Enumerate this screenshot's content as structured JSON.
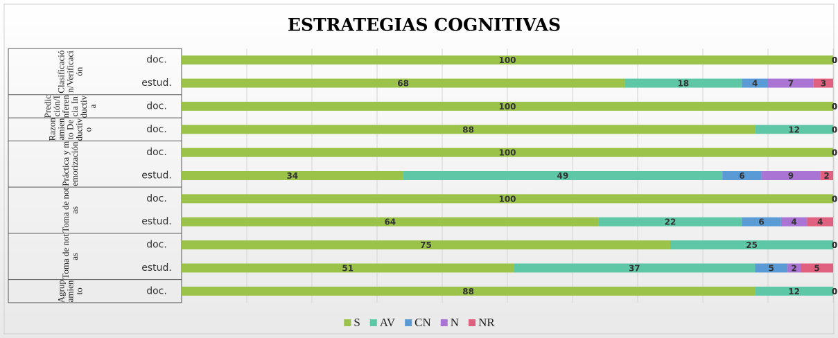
{
  "chart_data": {
    "type": "bar",
    "orientation": "horizontal",
    "stacked": true,
    "title": "ESTRATEGIAS COGNITIVAS",
    "groups": [
      {
        "label": "Clasificación/Verificación",
        "span": 2
      },
      {
        "label": "Predicción/Inferencia Inductiva",
        "span": 1
      },
      {
        "label": "Razonamiento Deductivo",
        "span": 1
      },
      {
        "label": "Práctica y memorización",
        "span": 2
      },
      {
        "label": "Toma de notas",
        "span": 2
      },
      {
        "label": "Toma de notas",
        "span": 2
      },
      {
        "label": "Agrupamiento",
        "span": 1
      }
    ],
    "categories": [
      "doc.",
      "estud.",
      "doc.",
      "doc.",
      "doc.",
      "estud.",
      "doc.",
      "estud.",
      "doc.",
      "estud.",
      "doc."
    ],
    "series": [
      {
        "name": "S",
        "color": "#9bc34a",
        "values": [
          100,
          68,
          100,
          88,
          100,
          34,
          100,
          64,
          75,
          51,
          88
        ]
      },
      {
        "name": "AV",
        "color": "#5ec7a6",
        "values": [
          0,
          18,
          0,
          12,
          0,
          49,
          0,
          22,
          25,
          37,
          12
        ]
      },
      {
        "name": "CN",
        "color": "#5b9bd5",
        "values": [
          0,
          4,
          0,
          0,
          0,
          6,
          0,
          6,
          0,
          5,
          0
        ]
      },
      {
        "name": "N",
        "color": "#a974d3",
        "values": [
          0,
          7,
          0,
          0,
          0,
          9,
          0,
          4,
          0,
          2,
          0
        ]
      },
      {
        "name": "NR",
        "color": "#e0617f",
        "values": [
          0,
          3,
          0,
          0,
          0,
          2,
          0,
          4,
          0,
          5,
          0
        ]
      }
    ],
    "xlim": [
      0,
      100
    ],
    "xticks": [
      0,
      10,
      20,
      30,
      40,
      50,
      60,
      70,
      80,
      90,
      100
    ],
    "grid": true,
    "legend": "bottom"
  }
}
